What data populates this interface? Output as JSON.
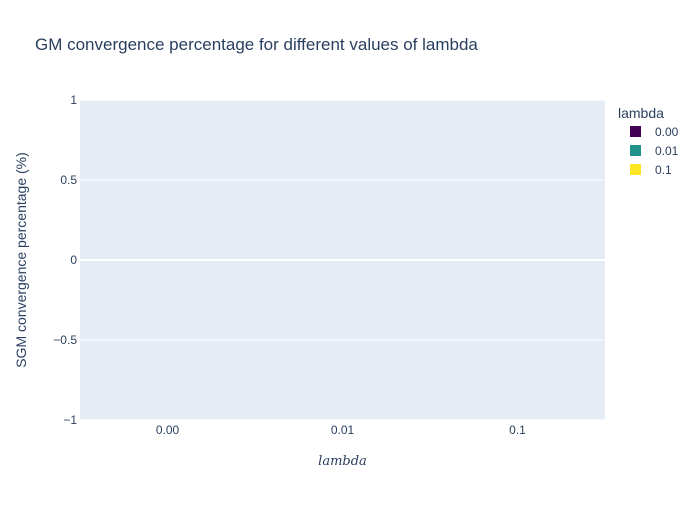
{
  "chart_data": {
    "type": "bar",
    "title": "GM convergence percentage for different values of lambda",
    "xlabel": "lambda",
    "ylabel": "SGM convergence percentage (%)",
    "categories": [
      "0.00",
      "0.01",
      "0.1"
    ],
    "series": [
      {
        "name": "0.00",
        "values": [
          0,
          null,
          null
        ],
        "color": "#440154"
      },
      {
        "name": "0.01",
        "values": [
          null,
          0,
          null
        ],
        "color": "#21918c"
      },
      {
        "name": "0.1",
        "values": [
          null,
          null,
          0
        ],
        "color": "#fde725"
      }
    ],
    "ylim": [
      -1,
      1
    ],
    "yticks": [
      -1,
      -0.5,
      0,
      0.5,
      1
    ],
    "ytick_labels": [
      "−1",
      "−0.5",
      "0",
      "0.5",
      "1"
    ],
    "legend": {
      "title": "lambda",
      "placement": "top-right"
    },
    "grid": true,
    "colors": {
      "plot_background": "#e5ecf6",
      "grid": "#ffffff",
      "text": "#2a3f5f"
    }
  }
}
